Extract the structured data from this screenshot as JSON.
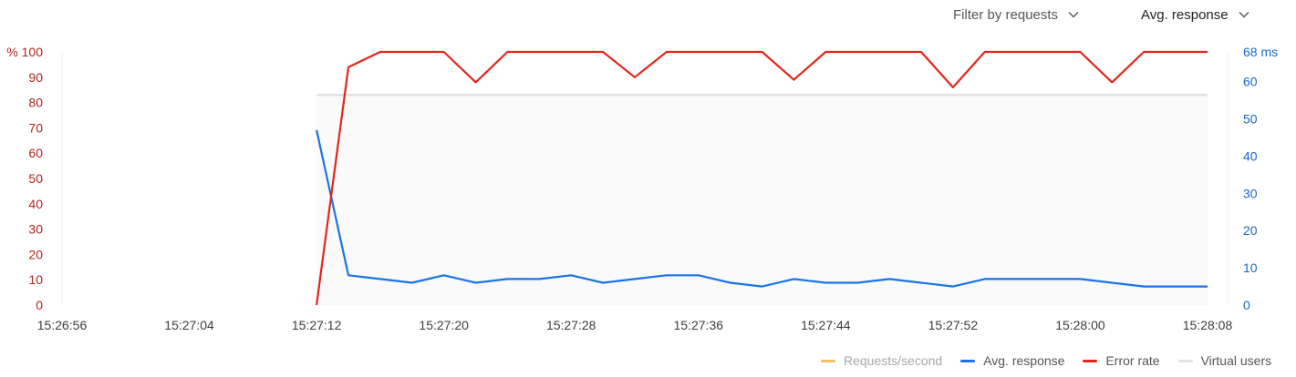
{
  "toolbar": {
    "filter_label": "Filter by requests",
    "metric_label": "Avg. response"
  },
  "colors": {
    "requests": "#f2c265",
    "avg_response": "#1a73e8",
    "error_rate": "#e3261b",
    "virtual_users": "#e2e2e2",
    "left_axis_text": "#b3261e",
    "right_axis_text": "#1a67c9"
  },
  "chart_data": {
    "type": "line",
    "x_ticks": [
      "15:26:56",
      "15:27:04",
      "15:27:12",
      "15:27:20",
      "15:27:28",
      "15:27:36",
      "15:27:44",
      "15:27:52",
      "15:28:00",
      "15:28:08"
    ],
    "x_range": [
      "15:26:56",
      "15:28:08"
    ],
    "y_left": {
      "ticks": [
        0,
        10,
        20,
        30,
        40,
        50,
        60,
        70,
        80,
        90,
        100
      ],
      "top_label": "% 100",
      "range": [
        0,
        100
      ],
      "unit": "%"
    },
    "y_right": {
      "ticks": [
        0,
        10,
        20,
        30,
        40,
        50,
        60
      ],
      "top_label": "68 ms",
      "range": [
        0,
        68
      ],
      "unit": "ms"
    },
    "grid": false,
    "legend_position": "bottom-right",
    "legend": [
      "Requests/second",
      "Avg. response",
      "Error rate",
      "Virtual users"
    ],
    "series": [
      {
        "name": "Error rate",
        "axis": "left",
        "x": [
          "15:27:12",
          "15:27:14",
          "15:27:16",
          "15:27:18",
          "15:27:20",
          "15:27:22",
          "15:27:24",
          "15:27:26",
          "15:27:28",
          "15:27:30",
          "15:27:32",
          "15:27:34",
          "15:27:36",
          "15:27:38",
          "15:27:40",
          "15:27:42",
          "15:27:44",
          "15:27:46",
          "15:27:48",
          "15:27:50",
          "15:27:52",
          "15:27:54",
          "15:27:56",
          "15:27:58",
          "15:28:00",
          "15:28:02",
          "15:28:04",
          "15:28:06",
          "15:28:08"
        ],
        "y": [
          0,
          94,
          100,
          100,
          100,
          88,
          100,
          100,
          100,
          100,
          90,
          100,
          100,
          100,
          100,
          89,
          100,
          100,
          100,
          100,
          86,
          100,
          100,
          100,
          100,
          88,
          100,
          100,
          100
        ]
      },
      {
        "name": "Avg. response",
        "axis": "right",
        "x": [
          "15:27:12",
          "15:27:14",
          "15:27:16",
          "15:27:18",
          "15:27:20",
          "15:27:22",
          "15:27:24",
          "15:27:26",
          "15:27:28",
          "15:27:30",
          "15:27:32",
          "15:27:34",
          "15:27:36",
          "15:27:38",
          "15:27:40",
          "15:27:42",
          "15:27:44",
          "15:27:46",
          "15:27:48",
          "15:27:50",
          "15:27:52",
          "15:27:54",
          "15:27:56",
          "15:27:58",
          "15:28:00",
          "15:28:02",
          "15:28:04",
          "15:28:06",
          "15:28:08"
        ],
        "y": [
          47,
          8,
          7,
          6,
          8,
          6,
          7,
          7,
          8,
          6,
          7,
          8,
          8,
          6,
          5,
          7,
          6,
          6,
          7,
          6,
          5,
          7,
          7,
          7,
          7,
          6,
          5,
          5,
          5
        ]
      },
      {
        "name": "Virtual users",
        "axis": "left",
        "area": true,
        "x": [
          "15:27:12",
          "15:28:08"
        ],
        "y": [
          83,
          83
        ]
      },
      {
        "name": "Requests/second",
        "axis": "left",
        "x": [],
        "y": []
      }
    ]
  }
}
